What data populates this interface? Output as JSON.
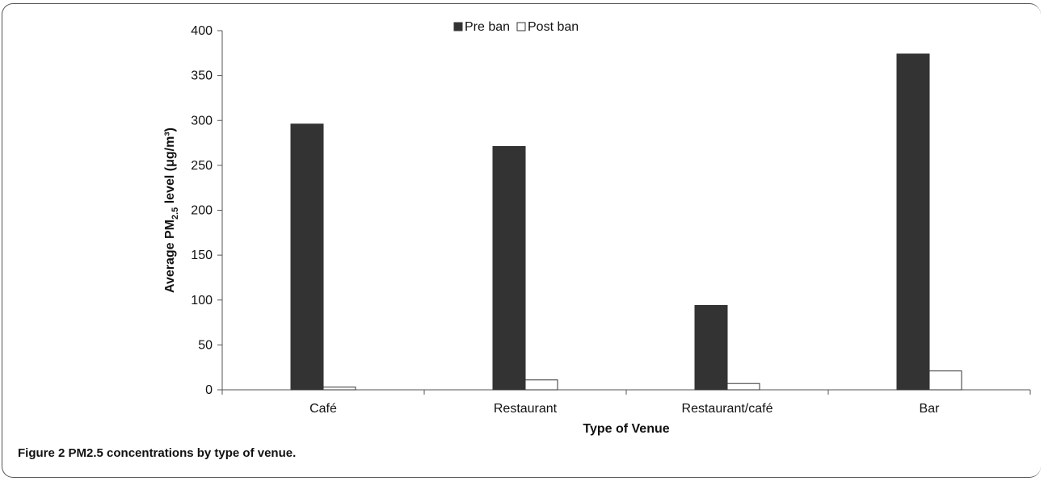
{
  "chart_data": {
    "type": "bar",
    "categories": [
      "Café",
      "Restaurant",
      "Restaurant/café",
      "Bar"
    ],
    "series": [
      {
        "name": "Pre ban",
        "values": [
          296,
          271,
          94,
          374
        ],
        "color": "#333333"
      },
      {
        "name": "Post ban",
        "values": [
          3,
          11,
          7,
          21
        ],
        "color": "#ffffff"
      }
    ],
    "xlabel": "Type of Venue",
    "ylabel": {
      "prefix": "Average PM",
      "subscript": "2.5",
      "suffix": " level (μg/m³)"
    },
    "ylim": [
      0,
      400
    ],
    "yticks": [
      0,
      50,
      100,
      150,
      200,
      250,
      300,
      350,
      400
    ],
    "grid": false,
    "legend_position": "top-center"
  },
  "caption": {
    "label": "Figure 2",
    "text": "PM2.5 concentrations by type of venue."
  }
}
